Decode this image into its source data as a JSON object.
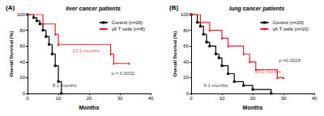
{
  "chart_data": [
    {
      "type": "line",
      "panel_label": "(A)",
      "title": "liver cancer patients",
      "x_label": "Months",
      "y_label": "Overall Survival (%)",
      "xlim": [
        0,
        40
      ],
      "xticks": [
        0,
        10,
        20,
        30,
        40
      ],
      "ylim": [
        0,
        100
      ],
      "yticks": [
        0,
        20,
        40,
        60,
        80,
        100
      ],
      "grid": false,
      "legend": "upper right",
      "line_style": "step",
      "series": [
        {
          "name": "Control (n=26)",
          "color": "#000000",
          "marker": "square",
          "x": [
            0,
            2,
            3,
            4,
            5,
            6,
            7,
            8,
            9,
            10,
            11
          ],
          "values": [
            100,
            96,
            92,
            88,
            80,
            72,
            62,
            50,
            35,
            15,
            0
          ]
        },
        {
          "name": "γδ T cells (n=8)",
          "color": "#e8202a",
          "marker": "triangle",
          "x": [
            0,
            5,
            9,
            10,
            27,
            28,
            33
          ],
          "values": [
            100,
            88,
            75,
            62,
            50,
            38,
            38
          ]
        }
      ],
      "annotations": [
        {
          "text": "23.1 months",
          "x": 19,
          "y": 54,
          "color": "#e8202a"
        },
        {
          "text": "8.1 months",
          "x": 12,
          "y": 10,
          "color": "#000000"
        },
        {
          "text": "p = 0.0002",
          "x": 31,
          "y": 26,
          "color": "#000000"
        }
      ]
    },
    {
      "type": "line",
      "panel_label": "(B)",
      "title": "lung cancer patients",
      "x_label": "Months",
      "y_label": "Overall Survival (%)",
      "xlim": [
        0,
        40
      ],
      "xticks": [
        0,
        10,
        20,
        30,
        40
      ],
      "ylim": [
        0,
        100
      ],
      "yticks": [
        0,
        20,
        40,
        60,
        80,
        100
      ],
      "grid": false,
      "legend": "upper right",
      "line_style": "step",
      "series": [
        {
          "name": "Control (n=20)",
          "color": "#000000",
          "marker": "square",
          "x": [
            0,
            2,
            3,
            4,
            5,
            6,
            8,
            9,
            10,
            12,
            14,
            17,
            20,
            26
          ],
          "values": [
            100,
            90,
            85,
            75,
            65,
            60,
            50,
            45,
            35,
            25,
            15,
            10,
            5,
            0
          ]
        },
        {
          "name": "γδ T cells (n=10)",
          "color": "#e8202a",
          "marker": "triangle",
          "x": [
            0,
            3,
            6,
            10,
            12,
            17,
            19,
            21,
            28,
            30
          ],
          "values": [
            100,
            90,
            80,
            70,
            60,
            50,
            40,
            30,
            20,
            20
          ]
        }
      ],
      "annotations": [
        {
          "text": "9.1 months",
          "x": 8,
          "y": 10,
          "color": "#000000"
        },
        {
          "text": "19.1 months",
          "x": 25,
          "y": 28,
          "color": "#e8202a"
        },
        {
          "text": "p =0.0028",
          "x": 32,
          "y": 42,
          "color": "#000000"
        }
      ]
    }
  ]
}
